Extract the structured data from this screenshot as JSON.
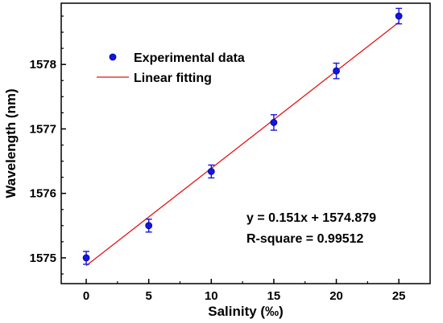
{
  "chart_data": {
    "type": "scatter",
    "xlabel": "Salinity (‰)",
    "ylabel": "Wavelength (nm)",
    "xlim": [
      -2,
      27.5
    ],
    "ylim": [
      1574.6,
      1578.95
    ],
    "x_ticks": [
      0,
      5,
      10,
      15,
      20,
      25
    ],
    "y_ticks": [
      1575,
      1576,
      1577,
      1578
    ],
    "series": [
      {
        "name": "Experimental data",
        "kind": "scatter",
        "color": "#1414e6",
        "x": [
          0,
          5,
          10,
          15,
          20,
          25
        ],
        "y": [
          1575.0,
          1575.5,
          1576.34,
          1577.1,
          1577.9,
          1578.75
        ],
        "error": [
          0.1,
          0.1,
          0.1,
          0.12,
          0.12,
          0.12
        ]
      },
      {
        "name": "Linear fitting",
        "kind": "line",
        "color": "#e11414",
        "x": [
          0,
          25
        ],
        "y": [
          1574.879,
          1578.654
        ]
      }
    ],
    "legend_position": "top-left",
    "grid": false,
    "annotations": [
      "y = 0.151x + 1574.879",
      "R-square = 0.99512"
    ]
  }
}
